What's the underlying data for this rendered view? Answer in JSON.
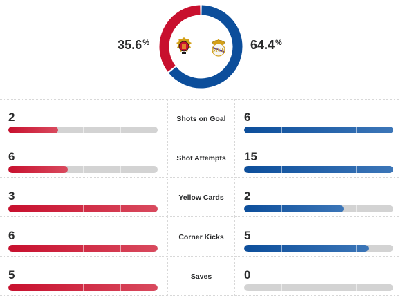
{
  "possession": {
    "home": {
      "value": 35.6,
      "display": "35.6",
      "symbol": "%",
      "color": "#c8102e",
      "crest": "rcd-mallorca-crest-icon"
    },
    "away": {
      "value": 64.4,
      "display": "64.4",
      "symbol": "%",
      "color": "#0c4e9b",
      "crest": "real-madrid-crest-icon"
    }
  },
  "stats": [
    {
      "label": "Shots on Goal",
      "home": 2,
      "away": 6,
      "home_fill": 0.333,
      "away_fill": 1.0
    },
    {
      "label": "Shot Attempts",
      "home": 6,
      "away": 15,
      "home_fill": 0.4,
      "away_fill": 1.0
    },
    {
      "label": "Yellow Cards",
      "home": 3,
      "away": 2,
      "home_fill": 1.0,
      "away_fill": 0.667
    },
    {
      "label": "Corner Kicks",
      "home": 6,
      "away": 5,
      "home_fill": 1.0,
      "away_fill": 0.833
    },
    {
      "label": "Saves",
      "home": 5,
      "away": 0,
      "home_fill": 1.0,
      "away_fill": 0.0
    }
  ]
}
